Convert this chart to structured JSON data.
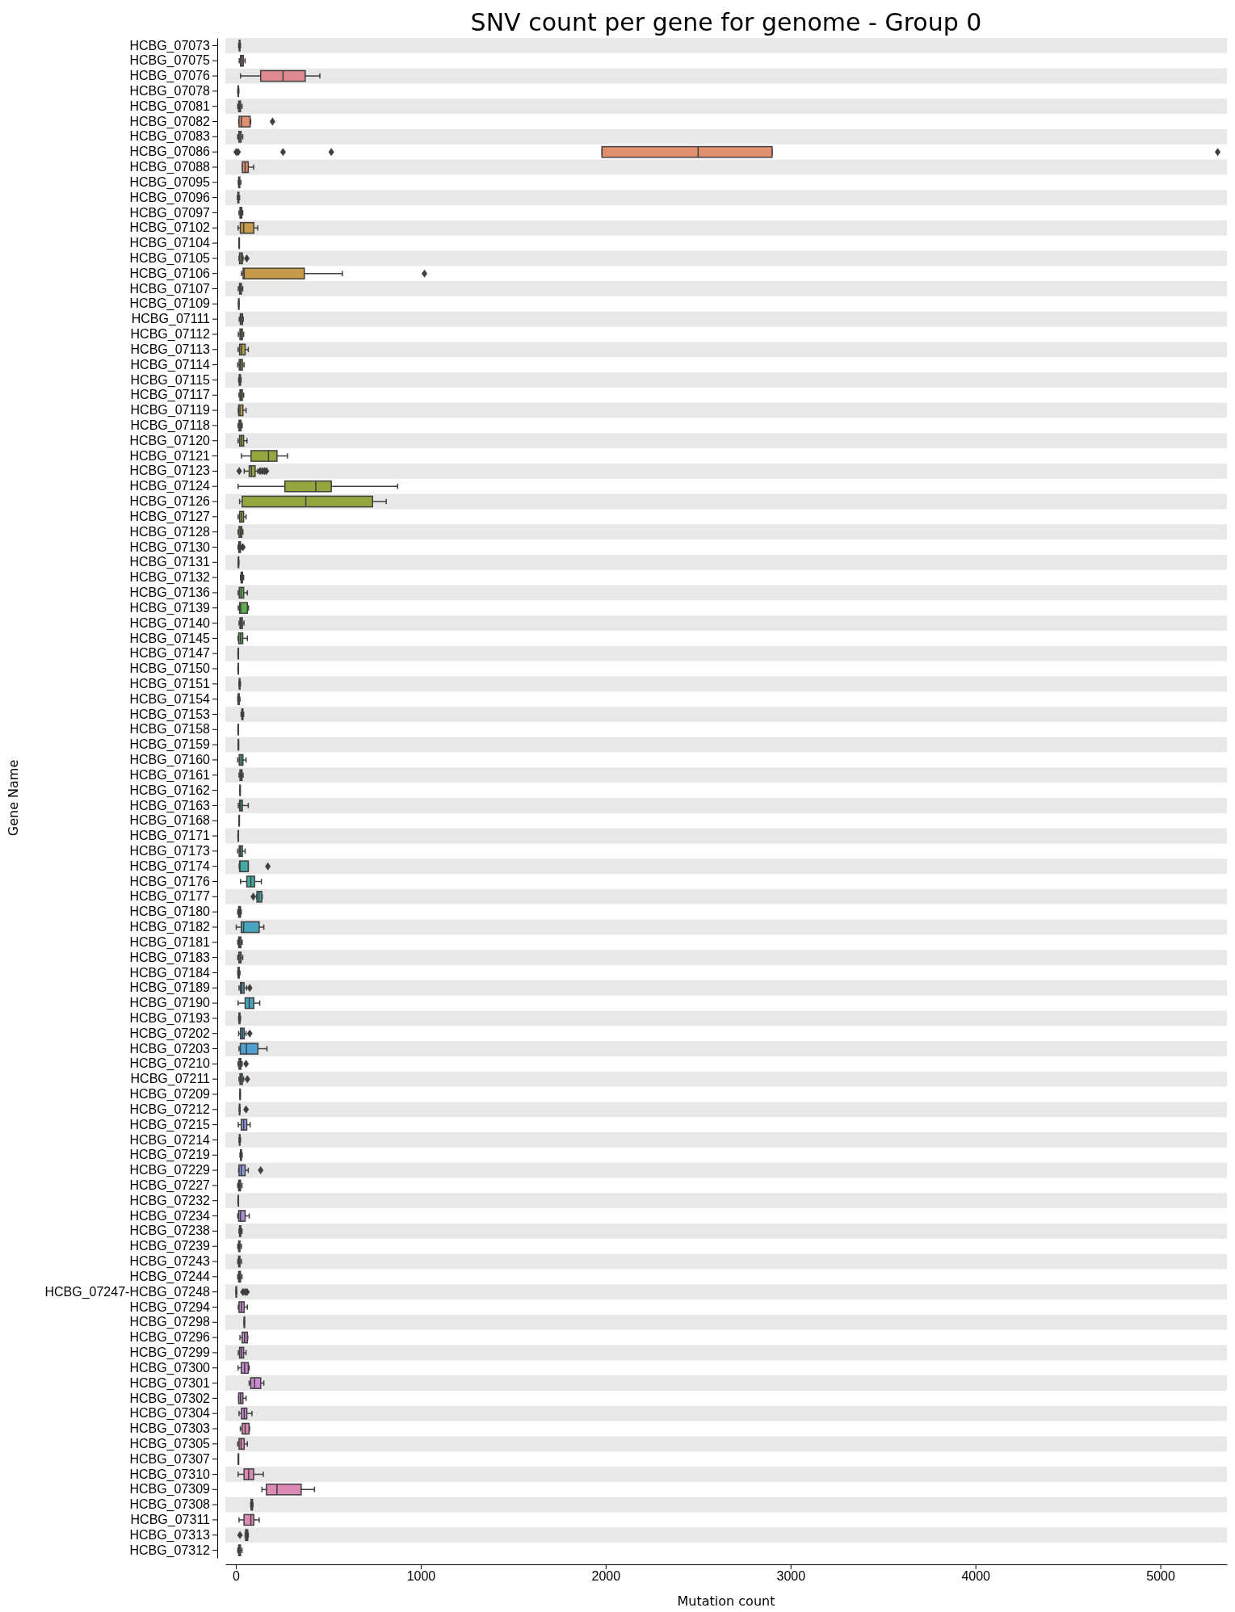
{
  "chart_data": {
    "type": "box",
    "orientation": "horizontal",
    "title": "SNV count per gene for genome - Group 0",
    "xlabel": "Mutation count",
    "ylabel": "Gene Name",
    "categories": [
      "HCBG_07073",
      "HCBG_07075",
      "HCBG_07076",
      "HCBG_07078",
      "HCBG_07081",
      "HCBG_07082",
      "HCBG_07083",
      "HCBG_07086",
      "HCBG_07088",
      "HCBG_07095",
      "HCBG_07096",
      "HCBG_07097",
      "HCBG_07102",
      "HCBG_07104",
      "HCBG_07105",
      "HCBG_07106",
      "HCBG_07107",
      "HCBG_07109",
      "HCBG_07111",
      "HCBG_07112",
      "HCBG_07113",
      "HCBG_07114",
      "HCBG_07115",
      "HCBG_07117",
      "HCBG_07119",
      "HCBG_07118",
      "HCBG_07120",
      "HCBG_07121",
      "HCBG_07123",
      "HCBG_07124",
      "HCBG_07126",
      "HCBG_07127",
      "HCBG_07128",
      "HCBG_07130",
      "HCBG_07131",
      "HCBG_07132",
      "HCBG_07136",
      "HCBG_07139",
      "HCBG_07140",
      "HCBG_07145",
      "HCBG_07147",
      "HCBG_07150",
      "HCBG_07151",
      "HCBG_07154",
      "HCBG_07153",
      "HCBG_07158",
      "HCBG_07159",
      "HCBG_07160",
      "HCBG_07161",
      "HCBG_07162",
      "HCBG_07163",
      "HCBG_07168",
      "HCBG_07171",
      "HCBG_07173",
      "HCBG_07174",
      "HCBG_07176",
      "HCBG_07177",
      "HCBG_07180",
      "HCBG_07182",
      "HCBG_07181",
      "HCBG_07183",
      "HCBG_07184",
      "HCBG_07189",
      "HCBG_07190",
      "HCBG_07193",
      "HCBG_07202",
      "HCBG_07203",
      "HCBG_07210",
      "HCBG_07211",
      "HCBG_07209",
      "HCBG_07212",
      "HCBG_07215",
      "HCBG_07214",
      "HCBG_07219",
      "HCBG_07229",
      "HCBG_07227",
      "HCBG_07232",
      "HCBG_07234",
      "HCBG_07238",
      "HCBG_07239",
      "HCBG_07243",
      "HCBG_07244",
      "HCBG_07247-HCBG_07248",
      "HCBG_07294",
      "HCBG_07298",
      "HCBG_07296",
      "HCBG_07299",
      "HCBG_07300",
      "HCBG_07301",
      "HCBG_07302",
      "HCBG_07304",
      "HCBG_07303",
      "HCBG_07305",
      "HCBG_07307",
      "HCBG_07310",
      "HCBG_07309",
      "HCBG_07308",
      "HCBG_07311",
      "HCBG_07313",
      "HCBG_07312"
    ],
    "boxes": [
      {
        "low": 15,
        "q1": 18,
        "median": 20,
        "q3": 22,
        "high": 25
      },
      {
        "low": 18,
        "q1": 25,
        "median": 32,
        "q3": 40,
        "high": 50
      },
      {
        "low": 25,
        "q1": 134,
        "median": 255,
        "q3": 375,
        "high": 454
      },
      {
        "low": 10,
        "q1": 12,
        "median": 13,
        "q3": 14,
        "high": 16
      },
      {
        "low": 10,
        "q1": 15,
        "median": 20,
        "q3": 25,
        "high": 33
      },
      {
        "low": 15,
        "q1": 17,
        "median": 30,
        "q3": 77,
        "high": 80,
        "outliers": [
          198
        ]
      },
      {
        "low": 10,
        "q1": 16,
        "median": 22,
        "q3": 28,
        "high": 37
      },
      {
        "low": 1980,
        "q1": 1980,
        "median": 2500,
        "q3": 2900,
        "high": 2900,
        "outliers": [
          2,
          12,
          255,
          516,
          5310
        ]
      },
      {
        "low": 35,
        "q1": 35,
        "median": 50,
        "q3": 67,
        "high": 96
      },
      {
        "low": 13,
        "q1": 15,
        "median": 18,
        "q3": 21,
        "high": 27
      },
      {
        "low": 8,
        "q1": 11,
        "median": 13,
        "q3": 16,
        "high": 20
      },
      {
        "low": 17,
        "q1": 22,
        "median": 27,
        "q3": 32,
        "high": 37
      },
      {
        "low": 12,
        "q1": 24,
        "median": 42,
        "q3": 97,
        "high": 118
      },
      {
        "low": 16,
        "q1": 17,
        "median": 17,
        "q3": 18,
        "high": 18
      },
      {
        "low": 17,
        "q1": 20,
        "median": 28,
        "q3": 35,
        "high": 39,
        "outliers": [
          59
        ]
      },
      {
        "low": 30,
        "q1": 39,
        "median": 45,
        "q3": 370,
        "high": 576,
        "outliers": [
          1020
        ]
      },
      {
        "low": 13,
        "q1": 20,
        "median": 25,
        "q3": 30,
        "high": 37
      },
      {
        "low": 14,
        "q1": 15,
        "median": 15,
        "q3": 16,
        "high": 17
      },
      {
        "low": 18,
        "q1": 24,
        "median": 30,
        "q3": 36,
        "high": 40
      },
      {
        "low": 13,
        "q1": 22,
        "median": 28,
        "q3": 35,
        "high": 42
      },
      {
        "low": 12,
        "q1": 20,
        "median": 30,
        "q3": 50,
        "high": 67
      },
      {
        "low": 10,
        "q1": 18,
        "median": 25,
        "q3": 35,
        "high": 44
      },
      {
        "low": 15,
        "q1": 18,
        "median": 22,
        "q3": 25,
        "high": 28
      },
      {
        "low": 17,
        "q1": 22,
        "median": 28,
        "q3": 35,
        "high": 42
      },
      {
        "low": 13,
        "q1": 15,
        "median": 22,
        "q3": 38,
        "high": 55
      },
      {
        "low": 12,
        "q1": 17,
        "median": 22,
        "q3": 28,
        "high": 34
      },
      {
        "low": 12,
        "q1": 20,
        "median": 30,
        "q3": 42,
        "high": 60
      },
      {
        "low": 30,
        "q1": 82,
        "median": 176,
        "q3": 222,
        "high": 279
      },
      {
        "low": 45,
        "q1": 72,
        "median": 84,
        "q3": 104,
        "high": 118,
        "outliers": [
          18,
          131,
          143,
          155,
          165
        ]
      },
      {
        "low": 12,
        "q1": 265,
        "median": 432,
        "q3": 516,
        "high": 875
      },
      {
        "low": 20,
        "q1": 34,
        "median": 378,
        "q3": 739,
        "high": 813
      },
      {
        "low": 12,
        "q1": 20,
        "median": 30,
        "q3": 42,
        "high": 55
      },
      {
        "low": 12,
        "q1": 17,
        "median": 25,
        "q3": 32,
        "high": 38
      },
      {
        "low": 12,
        "q1": 16,
        "median": 20,
        "q3": 25,
        "high": 30,
        "outliers": [
          38
        ]
      },
      {
        "low": 12,
        "q1": 13,
        "median": 14,
        "q3": 15,
        "high": 16
      },
      {
        "low": 25,
        "q1": 28,
        "median": 32,
        "q3": 36,
        "high": 42
      },
      {
        "low": 12,
        "q1": 18,
        "median": 28,
        "q3": 42,
        "high": 62
      },
      {
        "low": 13,
        "q1": 20,
        "median": 26,
        "q3": 62,
        "high": 68
      },
      {
        "low": 17,
        "q1": 22,
        "median": 28,
        "q3": 35,
        "high": 44
      },
      {
        "low": 12,
        "q1": 15,
        "median": 25,
        "q3": 37,
        "high": 62
      },
      {
        "low": 11,
        "q1": 12,
        "median": 12,
        "q3": 12,
        "high": 13
      },
      {
        "low": 11,
        "q1": 12,
        "median": 12,
        "q3": 12,
        "high": 13
      },
      {
        "low": 17,
        "q1": 18,
        "median": 20,
        "q3": 22,
        "high": 25
      },
      {
        "low": 10,
        "q1": 12,
        "median": 15,
        "q3": 18,
        "high": 22
      },
      {
        "low": 28,
        "q1": 32,
        "median": 35,
        "q3": 38,
        "high": 42
      },
      {
        "low": 11,
        "q1": 12,
        "median": 12,
        "q3": 12,
        "high": 13
      },
      {
        "low": 12,
        "q1": 13,
        "median": 13,
        "q3": 13,
        "high": 14
      },
      {
        "low": 10,
        "q1": 18,
        "median": 28,
        "q3": 38,
        "high": 55
      },
      {
        "low": 17,
        "q1": 22,
        "median": 27,
        "q3": 33,
        "high": 39
      },
      {
        "low": 21,
        "q1": 22,
        "median": 22,
        "q3": 22,
        "high": 23
      },
      {
        "low": 13,
        "q1": 20,
        "median": 25,
        "q3": 35,
        "high": 67
      },
      {
        "low": 16,
        "q1": 17,
        "median": 17,
        "q3": 17,
        "high": 18
      },
      {
        "low": 11,
        "q1": 12,
        "median": 12,
        "q3": 12,
        "high": 13
      },
      {
        "low": 10,
        "q1": 18,
        "median": 25,
        "q3": 35,
        "high": 50
      },
      {
        "low": 18,
        "q1": 20,
        "median": 22,
        "q3": 67,
        "high": 67,
        "outliers": [
          173
        ]
      },
      {
        "low": 25,
        "q1": 59,
        "median": 81,
        "q3": 101,
        "high": 138
      },
      {
        "low": 112,
        "q1": 114,
        "median": 125,
        "q3": 140,
        "high": 142,
        "outliers": [
          94
        ]
      },
      {
        "low": 10,
        "q1": 15,
        "median": 20,
        "q3": 25,
        "high": 29
      },
      {
        "low": 2,
        "q1": 29,
        "median": 42,
        "q3": 126,
        "high": 151
      },
      {
        "low": 10,
        "q1": 15,
        "median": 20,
        "q3": 27,
        "high": 34
      },
      {
        "low": 10,
        "q1": 16,
        "median": 22,
        "q3": 28,
        "high": 37
      },
      {
        "low": 10,
        "q1": 12,
        "median": 15,
        "q3": 18,
        "high": 22
      },
      {
        "low": 17,
        "q1": 25,
        "median": 32,
        "q3": 44,
        "high": 58,
        "outliers": [
          75
        ]
      },
      {
        "low": 12,
        "q1": 50,
        "median": 72,
        "q3": 97,
        "high": 129
      },
      {
        "low": 15,
        "q1": 17,
        "median": 20,
        "q3": 22,
        "high": 25
      },
      {
        "low": 15,
        "q1": 25,
        "median": 35,
        "q3": 45,
        "high": 55,
        "outliers": [
          75
        ]
      },
      {
        "low": 17,
        "q1": 24,
        "median": 57,
        "q3": 119,
        "high": 168
      },
      {
        "low": 12,
        "q1": 17,
        "median": 22,
        "q3": 27,
        "high": 34,
        "outliers": [
          55
        ]
      },
      {
        "low": 17,
        "q1": 22,
        "median": 28,
        "q3": 35,
        "high": 42,
        "outliers": [
          62
        ]
      },
      {
        "low": 21,
        "q1": 22,
        "median": 22,
        "q3": 23,
        "high": 24
      },
      {
        "low": 18,
        "q1": 19,
        "median": 20,
        "q3": 21,
        "high": 22,
        "outliers": [
          55
        ]
      },
      {
        "low": 13,
        "q1": 29,
        "median": 42,
        "q3": 59,
        "high": 77
      },
      {
        "low": 17,
        "q1": 19,
        "median": 20,
        "q3": 22,
        "high": 25
      },
      {
        "low": 22,
        "q1": 25,
        "median": 28,
        "q3": 30,
        "high": 34
      },
      {
        "low": 15,
        "q1": 17,
        "median": 29,
        "q3": 50,
        "high": 67,
        "outliers": [
          134
        ]
      },
      {
        "low": 10,
        "q1": 15,
        "median": 20,
        "q3": 25,
        "high": 33
      },
      {
        "low": 11,
        "q1": 12,
        "median": 12,
        "q3": 12,
        "high": 13
      },
      {
        "low": 10,
        "q1": 15,
        "median": 25,
        "q3": 50,
        "high": 72
      },
      {
        "low": 17,
        "q1": 20,
        "median": 23,
        "q3": 27,
        "high": 33
      },
      {
        "low": 10,
        "q1": 15,
        "median": 18,
        "q3": 22,
        "high": 30
      },
      {
        "low": 10,
        "q1": 15,
        "median": 18,
        "q3": 22,
        "high": 30
      },
      {
        "low": 10,
        "q1": 15,
        "median": 20,
        "q3": 25,
        "high": 33
      },
      {
        "low": 0,
        "q1": 1,
        "median": 2,
        "q3": 3,
        "high": 4,
        "outliers": [
          38,
          50,
          60
        ]
      },
      {
        "low": 13,
        "q1": 17,
        "median": 30,
        "q3": 45,
        "high": 62
      },
      {
        "low": 44,
        "q1": 45,
        "median": 45,
        "q3": 45,
        "high": 46
      },
      {
        "low": 22,
        "q1": 34,
        "median": 47,
        "q3": 62,
        "high": 64
      },
      {
        "low": 13,
        "q1": 20,
        "median": 30,
        "q3": 42,
        "high": 55
      },
      {
        "low": 12,
        "q1": 29,
        "median": 47,
        "q3": 67,
        "high": 72
      },
      {
        "low": 72,
        "q1": 80,
        "median": 101,
        "q3": 134,
        "high": 151
      },
      {
        "low": 15,
        "q1": 15,
        "median": 25,
        "q3": 38,
        "high": 55
      },
      {
        "low": 17,
        "q1": 30,
        "median": 45,
        "q3": 59,
        "high": 87
      },
      {
        "low": 24,
        "q1": 34,
        "median": 50,
        "q3": 71,
        "high": 74
      },
      {
        "low": 10,
        "q1": 17,
        "median": 28,
        "q3": 45,
        "high": 62
      },
      {
        "low": 12,
        "q1": 13,
        "median": 13,
        "q3": 14,
        "high": 14
      },
      {
        "low": 12,
        "q1": 44,
        "median": 69,
        "q3": 96,
        "high": 148
      },
      {
        "low": 141,
        "q1": 165,
        "median": 222,
        "q3": 353,
        "high": 425
      },
      {
        "low": 80,
        "q1": 82,
        "median": 86,
        "q3": 90,
        "high": 92
      },
      {
        "low": 17,
        "q1": 44,
        "median": 81,
        "q3": 97,
        "high": 126
      },
      {
        "low": 50,
        "q1": 52,
        "median": 58,
        "q3": 64,
        "high": 67,
        "outliers": [
          22
        ]
      },
      {
        "low": 10,
        "q1": 15,
        "median": 18,
        "q3": 25,
        "high": 33
      }
    ],
    "colors": [
      "#e08a8f",
      "#e08a8f",
      "#e08a8f",
      "#e08a8f",
      "#e08a8f",
      "#e0906e",
      "#e0906e",
      "#e0906e",
      "#e0906e",
      "#e0906e",
      "#c69a4c",
      "#c69a4c",
      "#c69a4c",
      "#c69a4c",
      "#c69a4c",
      "#c69a4c",
      "#b0a042",
      "#b0a042",
      "#b0a042",
      "#b0a042",
      "#b0a042",
      "#b0a042",
      "#b0a042",
      "#b0a042",
      "#b0a042",
      "#93a63f",
      "#93a63f",
      "#93a63f",
      "#93a63f",
      "#93a63f",
      "#93a63f",
      "#93a63f",
      "#93a63f",
      "#5fae52",
      "#5fae52",
      "#5fae52",
      "#5fae52",
      "#5fae52",
      "#5fae52",
      "#5fae52",
      "#5fae52",
      "#48ad86",
      "#48ad86",
      "#48ad86",
      "#48ad86",
      "#48ad86",
      "#48ad86",
      "#48ad86",
      "#48ad86",
      "#44aaa4",
      "#44aaa4",
      "#44aaa4",
      "#44aaa4",
      "#44aaa4",
      "#44aaa4",
      "#44aaa4",
      "#44aaa4",
      "#48a6bf",
      "#48a6bf",
      "#48a6bf",
      "#48a6bf",
      "#48a6bf",
      "#48a6bf",
      "#48a6bf",
      "#48a6bf",
      "#4fa2d3",
      "#4fa2d3",
      "#4fa2d3",
      "#4fa2d3",
      "#4fa2d3",
      "#4fa2d3",
      "#8d97dc",
      "#8d97dc",
      "#8d97dc",
      "#8d97dc",
      "#8d97dc",
      "#8d97dc",
      "#ad8dd6",
      "#ad8dd6",
      "#ad8dd6",
      "#ad8dd6",
      "#ad8dd6",
      "#ad8dd6",
      "#c98ad0",
      "#c98ad0",
      "#c98ad0",
      "#c98ad0",
      "#c98ad0",
      "#c98ad0",
      "#c98ad0",
      "#c98ad0",
      "#dc89b4",
      "#dc89b4",
      "#dc89b4",
      "#dc89b4",
      "#dc89b4",
      "#dc89b4",
      "#dc89b4",
      "#dc89b4",
      "#dc89b4"
    ],
    "xlim": [
      -57,
      5360
    ],
    "xticks": [
      0,
      1000,
      2000,
      3000,
      4000,
      5000
    ]
  }
}
